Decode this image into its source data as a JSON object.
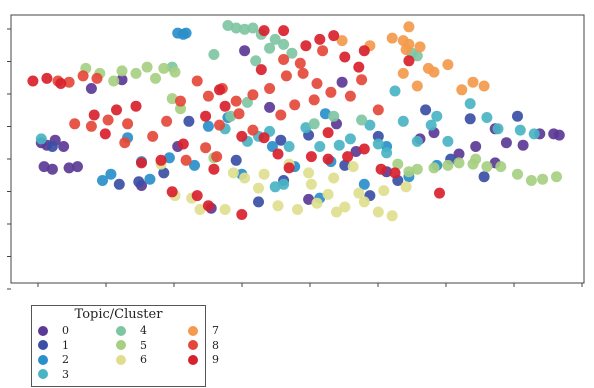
{
  "chart_data": {
    "type": "scatter",
    "title": "",
    "xlabel": "",
    "ylabel": "",
    "grid": false,
    "legend_position": "bottom-left, below plot",
    "xlim": [
      -10,
      10
    ],
    "ylim": [
      -10,
      10
    ],
    "legend": {
      "title": "Topic/Cluster",
      "items": [
        {
          "label": "0",
          "color": "#5b3a96"
        },
        {
          "label": "1",
          "color": "#3a4fa5"
        },
        {
          "label": "2",
          "color": "#2a8fca"
        },
        {
          "label": "3",
          "color": "#4ab4c4"
        },
        {
          "label": "4",
          "color": "#7ec6a2"
        },
        {
          "label": "5",
          "color": "#a6cf82"
        },
        {
          "label": "6",
          "color": "#dede8e"
        },
        {
          "label": "7",
          "color": "#f39a4c"
        },
        {
          "label": "8",
          "color": "#e4483a"
        },
        {
          "label": "9",
          "color": "#d8212e"
        }
      ]
    },
    "series": [
      {
        "name": "0",
        "color": "#5b3a96",
        "points": [
          [
            -9.2,
            0.5
          ],
          [
            -9.0,
            0.3
          ],
          [
            -8.7,
            0.7
          ],
          [
            -8.4,
            0.2
          ],
          [
            -9.1,
            -1.4
          ],
          [
            -8.8,
            -1.6
          ],
          [
            -8.2,
            -1.5
          ],
          [
            -7.9,
            -1.4
          ],
          [
            -5.6,
            -2.9
          ],
          [
            -4.3,
            0.2
          ],
          [
            -3.1,
            -4.7
          ],
          [
            -1.0,
            3.3
          ],
          [
            0.4,
            -4.0
          ],
          [
            1.4,
            2.0
          ],
          [
            2.1,
            -0.2
          ],
          [
            3.2,
            -1.8
          ],
          [
            4.4,
            0.8
          ],
          [
            4.9,
            1.3
          ],
          [
            5.8,
            -0.4
          ],
          [
            6.4,
            0.2
          ],
          [
            7.1,
            1.6
          ],
          [
            7.5,
            0.5
          ],
          [
            8.1,
            0.3
          ],
          [
            9.2,
            1.2
          ],
          [
            9.4,
            1.1
          ],
          [
            8.7,
            1.2
          ],
          [
            7.1,
            -1.1
          ],
          [
            1.6,
            5.3
          ],
          [
            -6.3,
            5.5
          ],
          [
            -7.4,
            4.8
          ],
          [
            -1.9,
            7.8
          ]
        ]
      },
      {
        "name": "1",
        "color": "#3a4fa5",
        "points": [
          [
            -8.8,
            0.2
          ],
          [
            -4.8,
            -1.9
          ],
          [
            -3.9,
            2.2
          ],
          [
            -2.2,
            -0.9
          ],
          [
            -0.6,
            0.7
          ],
          [
            0.4,
            1.1
          ],
          [
            1.7,
            -1.3
          ],
          [
            2.9,
            1.0
          ],
          [
            3.6,
            -2.5
          ],
          [
            4.6,
            3.1
          ],
          [
            5.5,
            -0.8
          ],
          [
            6.2,
            2.4
          ],
          [
            6.7,
            -2.2
          ],
          [
            -1.4,
            -4.2
          ],
          [
            -6.4,
            -2.8
          ],
          [
            -5.7,
            -2.6
          ],
          [
            2.6,
            -3.7
          ],
          [
            7.9,
            2.6
          ],
          [
            -0.5,
            -2.5
          ]
        ]
      },
      {
        "name": "2",
        "color": "#2a8fca",
        "points": [
          [
            -4.3,
            9.2
          ],
          [
            -4.1,
            9.1
          ],
          [
            -4.0,
            9.2
          ],
          [
            -7.0,
            -2.5
          ],
          [
            -6.7,
            -2.0
          ],
          [
            -5.6,
            -1.0
          ],
          [
            -5.3,
            -2.4
          ],
          [
            -4.6,
            -0.7
          ],
          [
            -3.2,
            1.8
          ],
          [
            -2.0,
            -2.0
          ],
          [
            -0.9,
            0.2
          ],
          [
            -0.1,
            -1.4
          ],
          [
            1.0,
            2.8
          ],
          [
            2.4,
            -2.8
          ],
          [
            3.2,
            0.2
          ],
          [
            -2.5,
            2.5
          ],
          [
            0.8,
            -3.9
          ],
          [
            4.0,
            -2.2
          ],
          [
            -6.1,
            0.9
          ],
          [
            5.0,
            -1.3
          ],
          [
            -3.7,
            -1.3
          ],
          [
            1.2,
            -1.0
          ]
        ]
      },
      {
        "name": "3",
        "color": "#4ab4c4",
        "points": [
          [
            -9.2,
            0.8
          ],
          [
            -2.6,
            1.6
          ],
          [
            -1.8,
            0.6
          ],
          [
            -1.0,
            1.4
          ],
          [
            -0.3,
            0.2
          ],
          [
            0.3,
            1.7
          ],
          [
            0.8,
            0.2
          ],
          [
            1.5,
            0.3
          ],
          [
            2.6,
            1.9
          ],
          [
            2.9,
            0.4
          ],
          [
            3.2,
            -0.3
          ],
          [
            3.8,
            2.2
          ],
          [
            4.3,
            0.6
          ],
          [
            5.0,
            2.6
          ],
          [
            6.2,
            3.6
          ],
          [
            6.8,
            2.5
          ],
          [
            7.2,
            1.6
          ],
          [
            8.0,
            1.5
          ],
          [
            8.5,
            1.2
          ],
          [
            5.4,
            0.6
          ],
          [
            -0.5,
            -2.8
          ],
          [
            4.8,
            1.9
          ],
          [
            -0.8,
            -3.0
          ],
          [
            -1.4,
            1.0
          ],
          [
            3.5,
            4.6
          ],
          [
            1.9,
            0.8
          ]
        ]
      },
      {
        "name": "4",
        "color": "#7ec6a2",
        "points": [
          [
            -2.5,
            9.8
          ],
          [
            -2.2,
            9.6
          ],
          [
            -1.9,
            9.5
          ],
          [
            -1.6,
            9.6
          ],
          [
            -1.3,
            9.1
          ],
          [
            -0.8,
            8.7
          ],
          [
            -0.5,
            8.3
          ],
          [
            -1.0,
            8.0
          ],
          [
            -0.2,
            7.6
          ],
          [
            4.1,
            7.6
          ],
          [
            4.3,
            7.4
          ],
          [
            0.6,
            2.0
          ],
          [
            -1.8,
            3.7
          ],
          [
            -2.4,
            2.6
          ],
          [
            -3.0,
            7.5
          ],
          [
            -1.5,
            7.0
          ],
          [
            -4.5,
            6.5
          ],
          [
            1.3,
            2.6
          ],
          [
            2.3,
            2.3
          ]
        ]
      },
      {
        "name": "5",
        "color": "#a6cf82",
        "points": [
          [
            -7.6,
            6.4
          ],
          [
            -7.1,
            6.0
          ],
          [
            -6.6,
            5.4
          ],
          [
            -6.3,
            6.2
          ],
          [
            -5.8,
            6.0
          ],
          [
            -5.4,
            6.5
          ],
          [
            -4.8,
            6.4
          ],
          [
            -4.4,
            6.1
          ],
          [
            -5.1,
            5.6
          ],
          [
            -4.5,
            4.0
          ],
          [
            -4.2,
            3.2
          ],
          [
            3.6,
            -1.2
          ],
          [
            4.3,
            -1.6
          ],
          [
            4.9,
            -1.5
          ],
          [
            5.4,
            -1.3
          ],
          [
            5.8,
            -1.1
          ],
          [
            6.3,
            -1.2
          ],
          [
            6.8,
            -1.4
          ],
          [
            7.3,
            -1.4
          ],
          [
            7.9,
            -2.0
          ],
          [
            8.4,
            -2.5
          ],
          [
            8.8,
            -2.4
          ],
          [
            9.3,
            -2.2
          ],
          [
            6.4,
            -0.8
          ],
          [
            4.0,
            -1.8
          ],
          [
            -3.0,
            -0.7
          ]
        ]
      },
      {
        "name": "6",
        "color": "#dede8e",
        "points": [
          [
            -4.9,
            -1.2
          ],
          [
            -4.4,
            -3.7
          ],
          [
            -3.5,
            -4.8
          ],
          [
            -2.6,
            -4.8
          ],
          [
            -1.9,
            -2.3
          ],
          [
            -1.4,
            -3.1
          ],
          [
            -0.7,
            -4.5
          ],
          [
            0.0,
            -4.8
          ],
          [
            0.7,
            -4.3
          ],
          [
            1.4,
            -5.0
          ],
          [
            1.7,
            -4.6
          ],
          [
            2.4,
            -4.2
          ],
          [
            2.9,
            -5.0
          ],
          [
            3.4,
            -5.3
          ],
          [
            3.1,
            -3.3
          ],
          [
            2.2,
            -3.5
          ],
          [
            1.1,
            -3.6
          ],
          [
            0.5,
            -2.8
          ],
          [
            -0.3,
            -1.2
          ],
          [
            0.4,
            -1.9
          ],
          [
            1.3,
            -2.3
          ],
          [
            2.0,
            -1.4
          ],
          [
            -3.8,
            -3.9
          ],
          [
            -2.3,
            -1.9
          ],
          [
            3.9,
            -3.0
          ],
          [
            -1.2,
            -2.0
          ]
        ]
      },
      {
        "name": "7",
        "color": "#f39a4c",
        "points": [
          [
            1.6,
            8.6
          ],
          [
            2.6,
            8.2
          ],
          [
            3.4,
            8.8
          ],
          [
            3.8,
            8.6
          ],
          [
            4.0,
            8.3
          ],
          [
            4.4,
            8.1
          ],
          [
            3.9,
            7.9
          ],
          [
            4.7,
            6.4
          ],
          [
            4.9,
            6.1
          ],
          [
            5.9,
            4.7
          ],
          [
            6.3,
            5.3
          ],
          [
            6.7,
            5.0
          ],
          [
            5.4,
            6.7
          ],
          [
            3.8,
            6.0
          ],
          [
            4.3,
            5.0
          ],
          [
            4.0,
            9.7
          ]
        ]
      },
      {
        "name": "8",
        "color": "#e4483a",
        "points": [
          [
            -8.6,
            5.4
          ],
          [
            -8.2,
            5.3
          ],
          [
            -7.7,
            5.8
          ],
          [
            -7.2,
            5.6
          ],
          [
            -8.0,
            2.0
          ],
          [
            -7.4,
            1.8
          ],
          [
            -6.8,
            2.3
          ],
          [
            -6.1,
            2.0
          ],
          [
            -6.2,
            0.5
          ],
          [
            -5.2,
            1.0
          ],
          [
            -4.7,
            2.2
          ],
          [
            -4.2,
            3.8
          ],
          [
            -3.6,
            5.4
          ],
          [
            -3.2,
            4.2
          ],
          [
            -2.7,
            4.8
          ],
          [
            -2.2,
            3.8
          ],
          [
            -1.6,
            4.3
          ],
          [
            -1.0,
            4.8
          ],
          [
            -0.4,
            5.8
          ],
          [
            0.2,
            6.0
          ],
          [
            0.7,
            5.2
          ],
          [
            1.2,
            4.5
          ],
          [
            1.9,
            4.2
          ],
          [
            -2.8,
            1.9
          ],
          [
            -2.1,
            2.8
          ],
          [
            -1.6,
            1.5
          ],
          [
            -0.6,
            2.7
          ],
          [
            -0.1,
            3.5
          ],
          [
            0.6,
            3.9
          ],
          [
            -3.3,
            0.1
          ],
          [
            -4.0,
            -0.9
          ],
          [
            -2.9,
            -0.6
          ],
          [
            0.1,
            6.8
          ],
          [
            0.9,
            7.8
          ],
          [
            -0.5,
            7.1
          ],
          [
            2.3,
            5.5
          ],
          [
            2.9,
            3.1
          ]
        ]
      },
      {
        "name": "9",
        "color": "#d8212e",
        "points": [
          [
            -9.5,
            5.4
          ],
          [
            -9.0,
            5.6
          ],
          [
            -8.5,
            5.2
          ],
          [
            -6.5,
            3.1
          ],
          [
            -5.8,
            3.4
          ],
          [
            -6.9,
            1.2
          ],
          [
            -7.3,
            2.7
          ],
          [
            -5.6,
            -1.1
          ],
          [
            -4.9,
            -0.9
          ],
          [
            -4.1,
            0.4
          ],
          [
            -3.3,
            2.6
          ],
          [
            -2.6,
            3.4
          ],
          [
            -2.0,
            1.0
          ],
          [
            -1.2,
            0.9
          ],
          [
            -0.7,
            -0.4
          ],
          [
            -0.3,
            -1.5
          ],
          [
            0.5,
            -0.6
          ],
          [
            1.1,
            1.3
          ],
          [
            1.8,
            -0.6
          ],
          [
            2.4,
            0.0
          ],
          [
            3.0,
            -1.6
          ],
          [
            3.5,
            -1.9
          ],
          [
            0.8,
            8.7
          ],
          [
            1.3,
            9.0
          ],
          [
            -1.2,
            9.4
          ],
          [
            -0.5,
            9.4
          ],
          [
            2.4,
            7.8
          ],
          [
            2.2,
            6.5
          ],
          [
            0.3,
            8.2
          ],
          [
            1.7,
            7.3
          ],
          [
            -2.8,
            4.7
          ],
          [
            -3.6,
            -3.7
          ],
          [
            -4.5,
            -3.4
          ],
          [
            -3.2,
            -4.5
          ],
          [
            -2.0,
            -5.2
          ],
          [
            1.1,
            -0.8
          ],
          [
            -3.0,
            -1.6
          ],
          [
            4.0,
            7.0
          ],
          [
            -1.3,
            6.3
          ],
          [
            5.1,
            -3.5
          ]
        ]
      }
    ]
  }
}
